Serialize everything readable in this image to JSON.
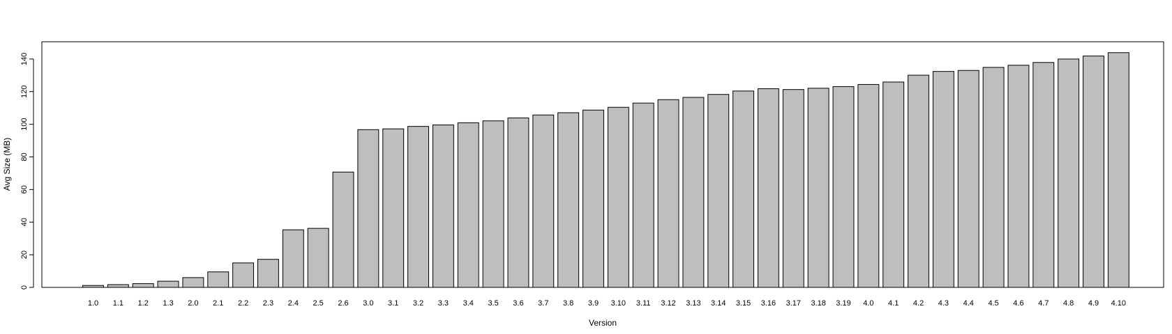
{
  "chart_data": {
    "type": "bar",
    "title": "",
    "xlabel": "Version",
    "ylabel": "Avg Size (MB)",
    "ylim": [
      0,
      150
    ],
    "yticks": [
      0,
      20,
      40,
      60,
      80,
      100,
      120,
      140
    ],
    "grid": false,
    "categories": [
      "1.0",
      "1.1",
      "1.2",
      "1.3",
      "2.0",
      "2.1",
      "2.2",
      "2.3",
      "2.4",
      "2.5",
      "2.6",
      "3.0",
      "3.1",
      "3.2",
      "3.3",
      "3.4",
      "3.5",
      "3.6",
      "3.7",
      "3.8",
      "3.9",
      "3.10",
      "3.11",
      "3.12",
      "3.13",
      "3.14",
      "3.15",
      "3.16",
      "3.17",
      "3.18",
      "3.19",
      "4.0",
      "4.1",
      "4.2",
      "4.3",
      "4.4",
      "4.5",
      "4.6",
      "4.7",
      "4.8",
      "4.9",
      "4.10"
    ],
    "values": [
      1.2,
      1.7,
      2.3,
      3.8,
      6.0,
      9.5,
      15.0,
      17.2,
      35.3,
      36.2,
      70.7,
      96.7,
      97.2,
      98.7,
      99.6,
      100.9,
      102.1,
      103.9,
      105.7,
      107.1,
      108.7,
      110.4,
      113.0,
      115.1,
      116.5,
      118.3,
      120.4,
      121.8,
      121.3,
      122.1,
      123.1,
      124.4,
      125.9,
      130.1,
      132.4,
      133.0,
      134.9,
      136.2,
      137.9,
      140.0,
      141.9,
      143.9
    ],
    "colors": {
      "bar_fill": "#bebebe",
      "bar_stroke": "#000000"
    }
  }
}
